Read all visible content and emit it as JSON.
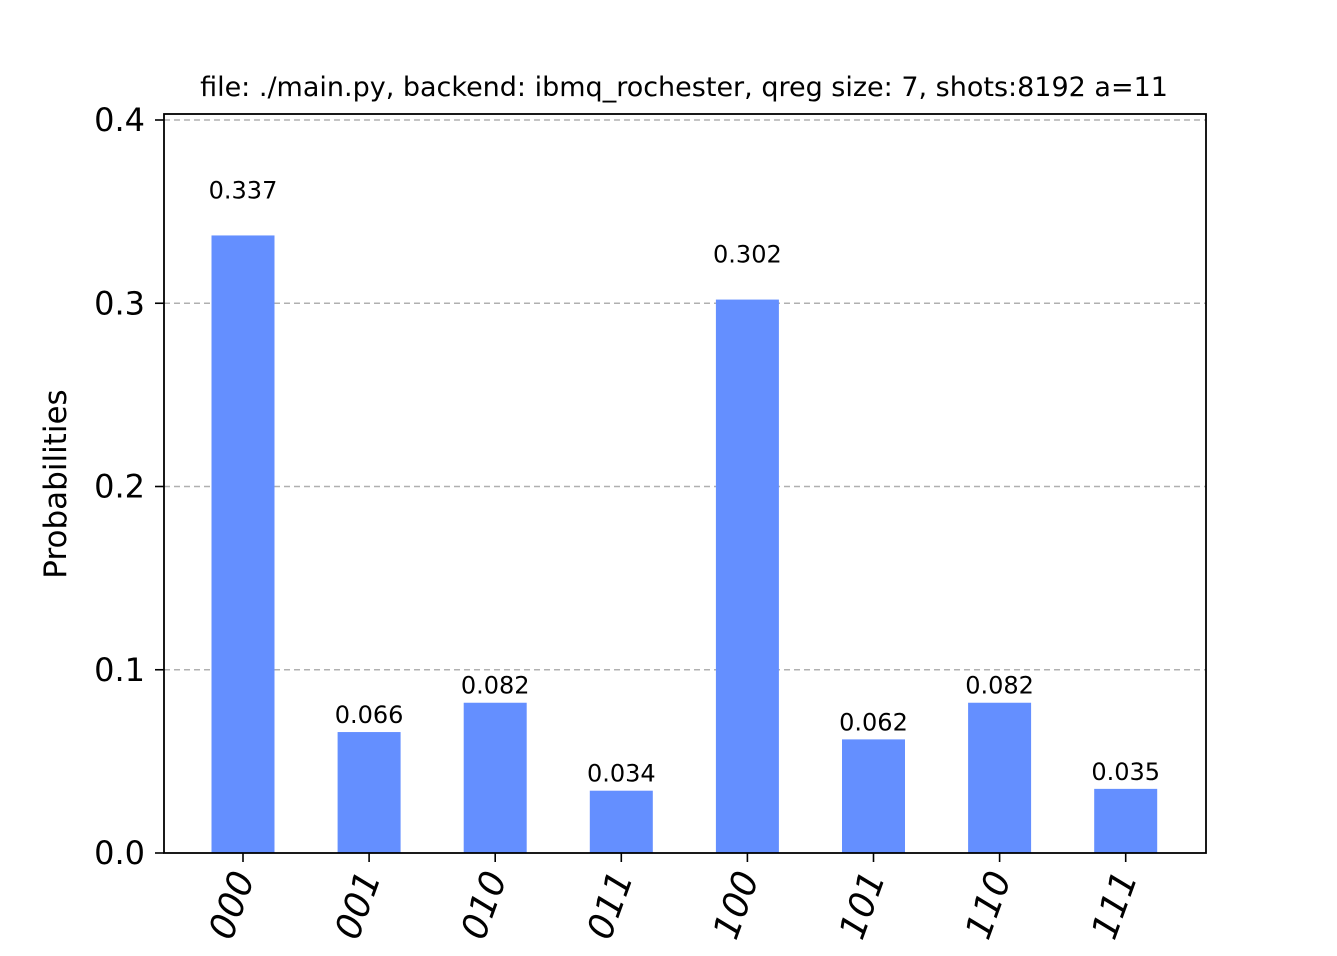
{
  "chart_data": {
    "type": "bar",
    "title": "file: ./main.py, backend: ibmq_rochester, qreg size: 7, shots:8192 a=11",
    "xlabel": "",
    "ylabel": "Probabilities",
    "categories": [
      "000",
      "001",
      "010",
      "011",
      "100",
      "101",
      "110",
      "111"
    ],
    "values": [
      0.337,
      0.066,
      0.082,
      0.034,
      0.302,
      0.062,
      0.082,
      0.035
    ],
    "value_labels": [
      "0.337",
      "0.066",
      "0.082",
      "0.034",
      "0.302",
      "0.062",
      "0.082",
      "0.035"
    ],
    "ylim": [
      0,
      0.4
    ],
    "yticks": [
      0,
      0.1,
      0.2,
      0.3,
      0.4
    ],
    "ytick_labels": [
      "0.0",
      "0.1",
      "0.2",
      "0.3",
      "0.4"
    ],
    "grid": "horizontal dashed",
    "bar_color": "#648fff",
    "grid_color": "#b0b0b0",
    "x_tick_rotation_deg": -70
  }
}
